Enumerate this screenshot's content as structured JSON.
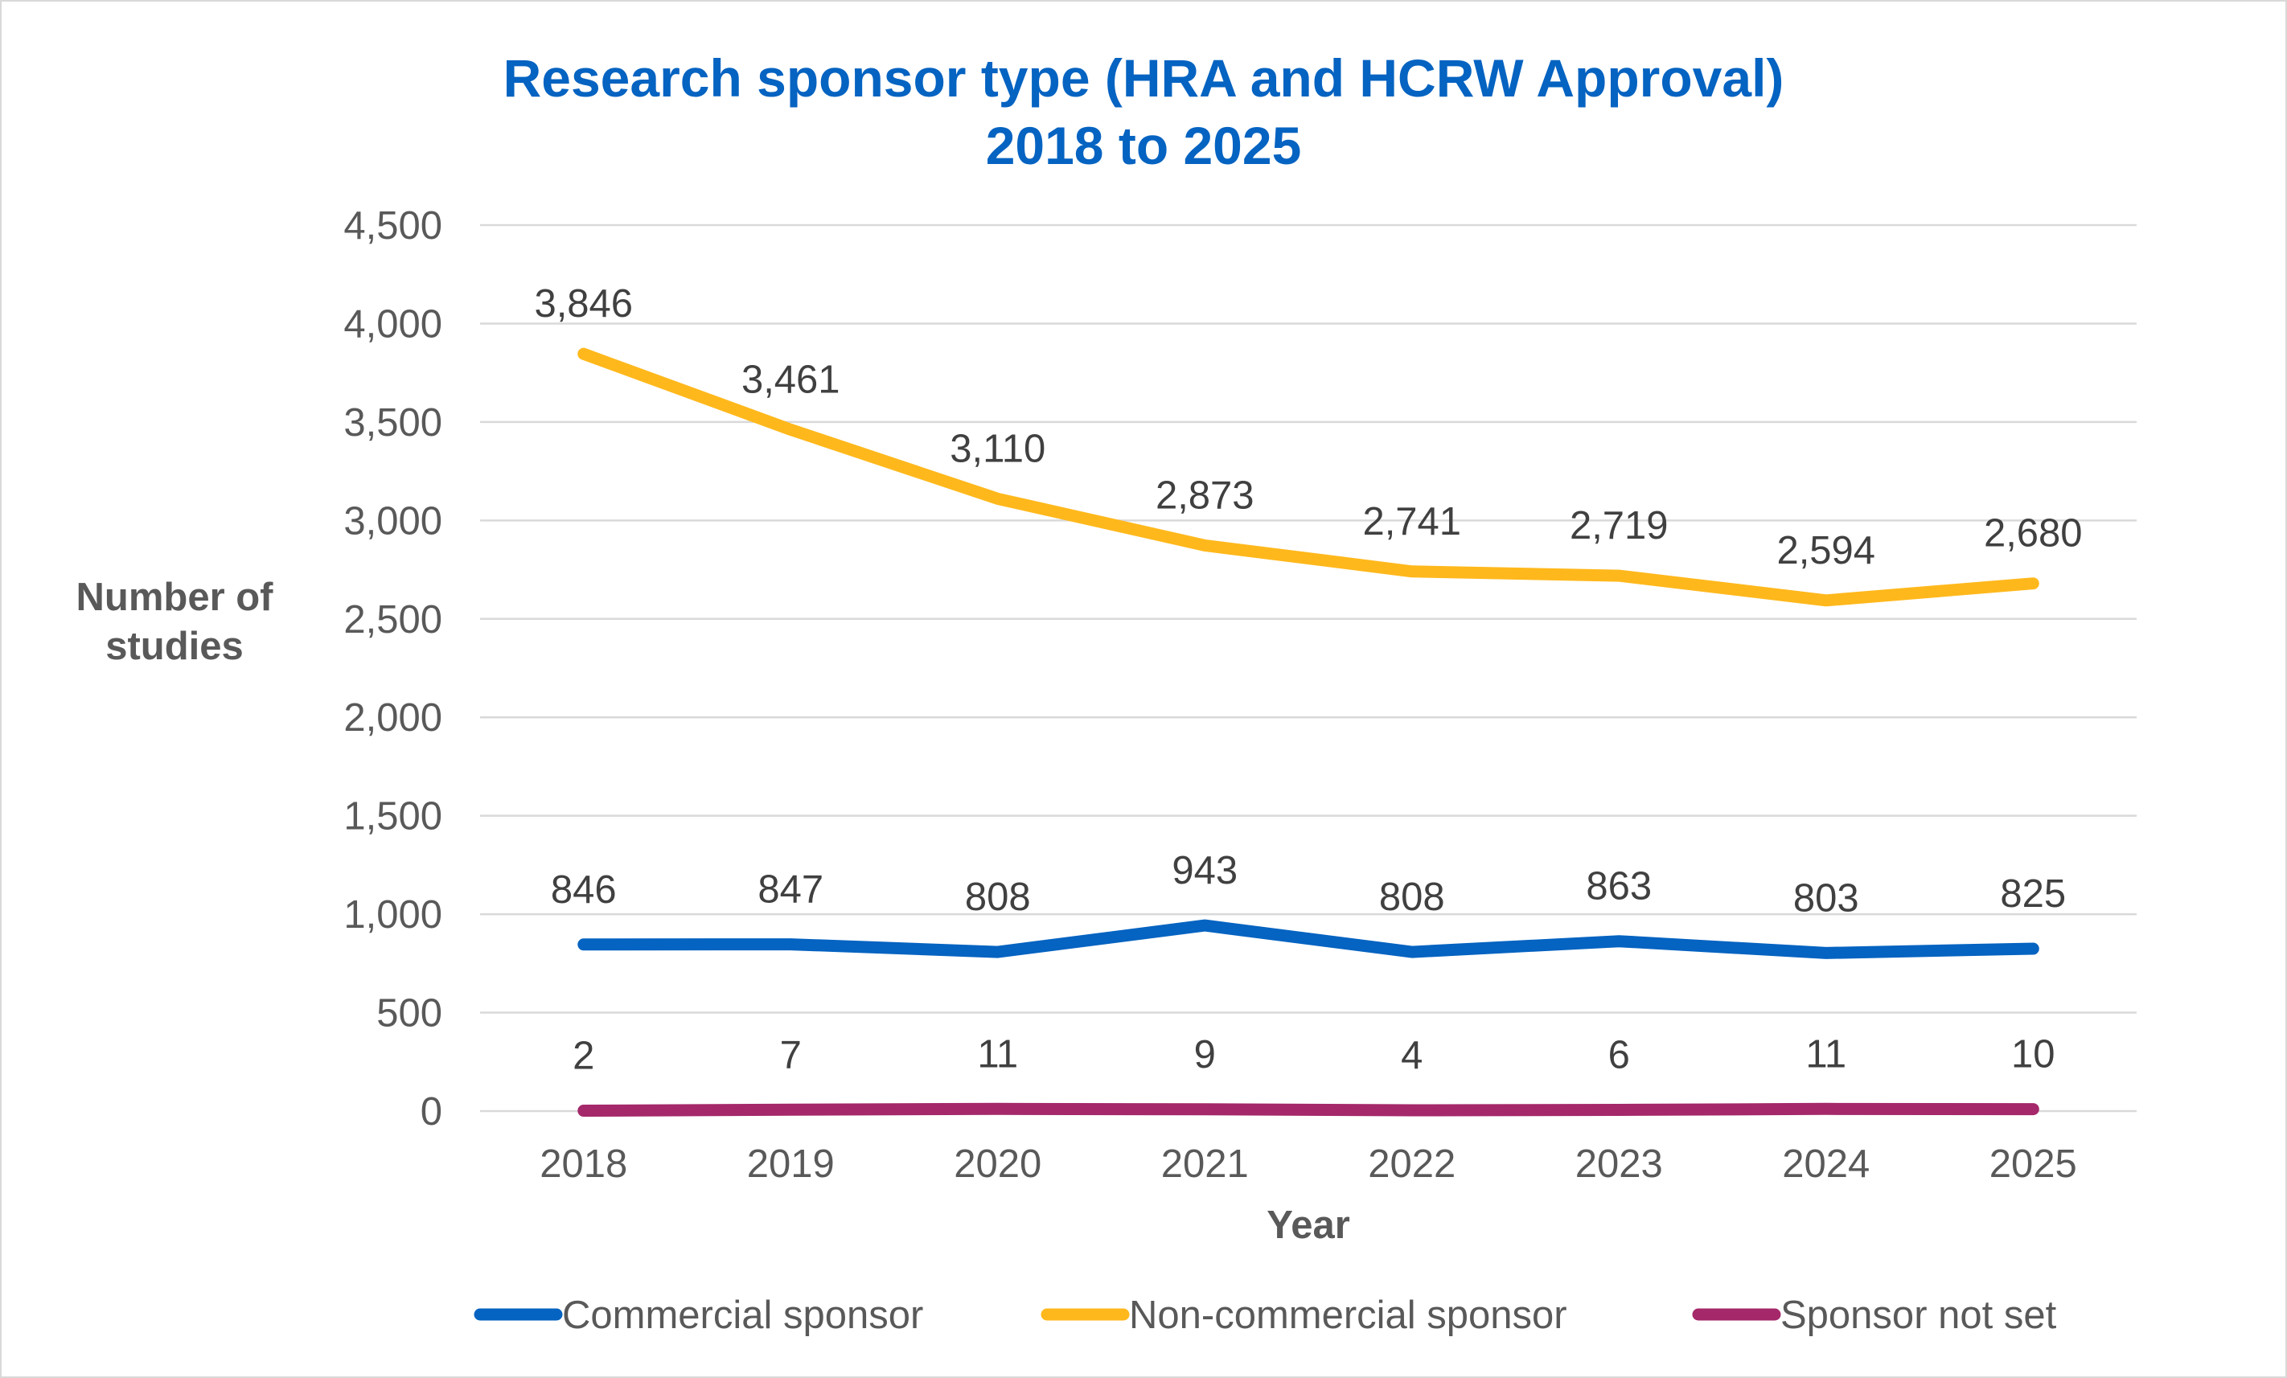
{
  "chart_data": {
    "type": "line",
    "title": "Research sponsor type (HRA and HCRW Approval)",
    "subtitle": "2018 to 2025",
    "title_color": "#0563c1",
    "xlabel": "Year",
    "ylabel_line1": "Number of",
    "ylabel_line2": "studies",
    "categories": [
      "2018",
      "2019",
      "2020",
      "2021",
      "2022",
      "2023",
      "2024",
      "2025"
    ],
    "ylim": [
      0,
      4500
    ],
    "yticks": [
      0,
      500,
      1000,
      1500,
      2000,
      2500,
      3000,
      3500,
      4000,
      4500
    ],
    "ytick_labels": [
      "0",
      "500",
      "1,000",
      "1,500",
      "2,000",
      "2,500",
      "3,000",
      "3,500",
      "4,000",
      "4,500"
    ],
    "grid": true,
    "legend_position": "bottom",
    "series": [
      {
        "name": "Commercial sponsor",
        "color": "#0563c1",
        "values": [
          846,
          847,
          808,
          943,
          808,
          863,
          803,
          825
        ],
        "labels": [
          "846",
          "847",
          "808",
          "943",
          "808",
          "863",
          "803",
          "825"
        ]
      },
      {
        "name": "Non-commercial sponsor",
        "color": "#ffb81c",
        "values": [
          3846,
          3461,
          3110,
          2873,
          2741,
          2719,
          2594,
          2680
        ],
        "labels": [
          "3,846",
          "3,461",
          "3,110",
          "2,873",
          "2,741",
          "2,719",
          "2,594",
          "2,680"
        ]
      },
      {
        "name": "Sponsor not set",
        "color": "#a4286a",
        "values": [
          2,
          7,
          11,
          9,
          4,
          6,
          11,
          10
        ],
        "labels": [
          "2",
          "7",
          "11",
          "9",
          "4",
          "6",
          "11",
          "10"
        ]
      }
    ]
  }
}
